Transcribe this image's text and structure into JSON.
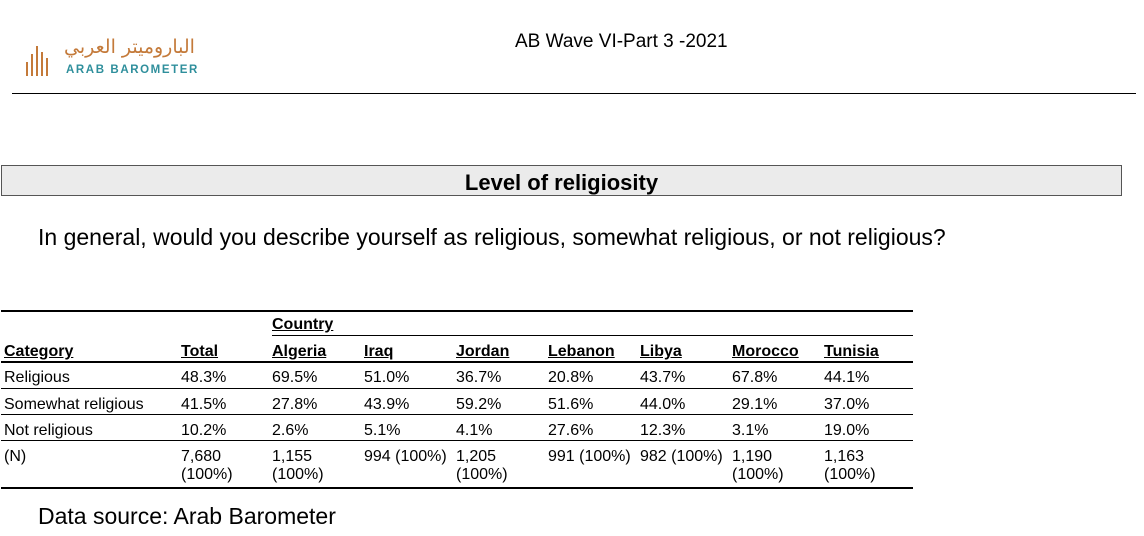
{
  "header": {
    "logo_arabic": "الباروميتر العربي",
    "logo_english": "ARAB BAROMETER",
    "title": "AB Wave VI-Part 3 -2021"
  },
  "section_title": "Level of religiosity",
  "question": "In general, would you describe yourself as religious, somewhat religious, or not religious?",
  "table": {
    "group_header": "Country",
    "columns": [
      "Category",
      "Total",
      "Algeria",
      "Iraq",
      "Jordan",
      "Lebanon",
      "Libya",
      "Morocco",
      "Tunisia"
    ],
    "rows": [
      [
        "Religious",
        "48.3%",
        "69.5%",
        "51.0%",
        "36.7%",
        "20.8%",
        "43.7%",
        "67.8%",
        "44.1%"
      ],
      [
        "Somewhat religious",
        "41.5%",
        "27.8%",
        "43.9%",
        "59.2%",
        "51.6%",
        "44.0%",
        "29.1%",
        "37.0%"
      ],
      [
        "Not religious",
        "10.2%",
        "2.6%",
        "5.1%",
        "4.1%",
        "27.6%",
        "12.3%",
        "3.1%",
        "19.0%"
      ]
    ],
    "n_row": {
      "label": "(N)",
      "cells": [
        [
          "7,680",
          "(100%)"
        ],
        [
          "1,155",
          "(100%)"
        ],
        [
          "994 (100%)",
          ""
        ],
        [
          "1,205",
          "(100%)"
        ],
        [
          "991 (100%)",
          ""
        ],
        [
          "982 (100%)",
          ""
        ],
        [
          "1,190",
          "(100%)"
        ],
        [
          "1,163",
          "(100%)"
        ]
      ]
    }
  },
  "footer": "Data source: Arab Barometer",
  "colors": {
    "logo_orange": "#c47a3a",
    "logo_teal": "#2f8f9c",
    "section_bg": "#ebebeb"
  }
}
